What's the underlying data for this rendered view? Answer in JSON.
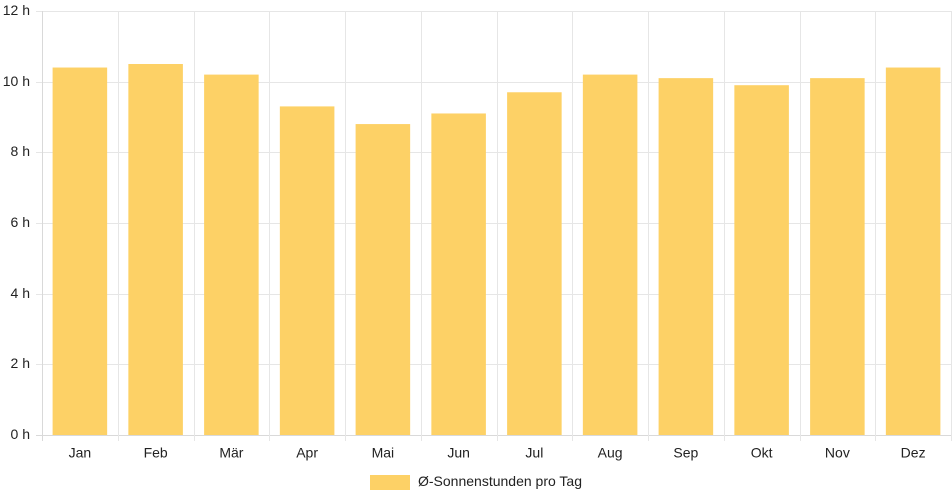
{
  "chart_data": {
    "type": "bar",
    "title": "",
    "xlabel": "",
    "ylabel": "",
    "categories": [
      "Jan",
      "Feb",
      "Mär",
      "Apr",
      "Mai",
      "Jun",
      "Jul",
      "Aug",
      "Sep",
      "Okt",
      "Nov",
      "Dez"
    ],
    "series": [
      {
        "name": "Ø-Sonnenstunden pro Tag",
        "values": [
          10.4,
          10.5,
          10.2,
          9.3,
          8.8,
          9.1,
          9.7,
          10.2,
          10.1,
          9.9,
          10.1,
          10.4
        ]
      }
    ],
    "ylim": [
      0,
      12
    ],
    "yticks": [
      0,
      2,
      4,
      6,
      8,
      10,
      12
    ],
    "ytick_labels": [
      "0 h",
      "2 h",
      "4 h",
      "6 h",
      "8 h",
      "10 h",
      "12 h"
    ],
    "grid": true,
    "legend_position": "bottom",
    "colors": {
      "bar": "#fdd166",
      "grid": "#e6e6e6",
      "axis": "#d9d9d9",
      "text": "#222222"
    }
  }
}
